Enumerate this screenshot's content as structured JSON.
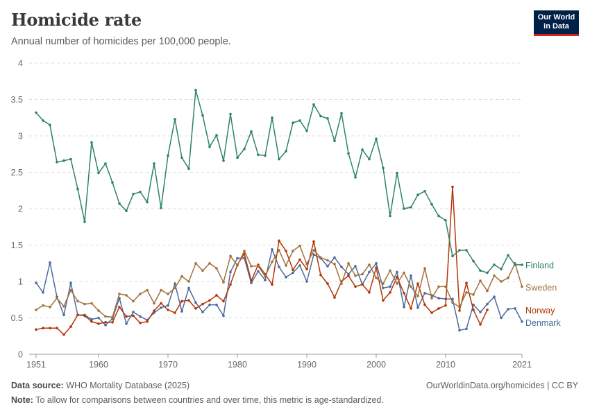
{
  "header": {
    "title": "Homicide rate",
    "subtitle": "Annual number of homicides per 100,000 people."
  },
  "logo": {
    "line1": "Our World",
    "line2": "in Data"
  },
  "footer": {
    "source_label": "Data source:",
    "source_text": "WHO Mortality Database (2025)",
    "url_text": "OurWorldinData.org/homicides | CC BY",
    "note_label": "Note:",
    "note_text": "To allow for comparisons between countries and over time, this metric is age-standardized."
  },
  "chart_data": {
    "type": "line",
    "xlim": [
      1950,
      2021
    ],
    "ylim": [
      0,
      4
    ],
    "x_ticks": [
      1951,
      1960,
      1970,
      1980,
      1990,
      2000,
      2010,
      2021
    ],
    "y_ticks": [
      0,
      0.5,
      1,
      1.5,
      2,
      2.5,
      3,
      3.5,
      4
    ],
    "grid": "horizontal-dashed",
    "legend": "right-end-labels",
    "series": [
      {
        "name": "Finland",
        "color": "#2c8465",
        "x": [
          1951,
          1952,
          1953,
          1954,
          1955,
          1956,
          1957,
          1958,
          1959,
          1960,
          1961,
          1962,
          1963,
          1964,
          1965,
          1966,
          1967,
          1968,
          1969,
          1970,
          1971,
          1972,
          1973,
          1974,
          1975,
          1976,
          1977,
          1978,
          1979,
          1980,
          1981,
          1982,
          1983,
          1984,
          1985,
          1986,
          1987,
          1988,
          1989,
          1990,
          1991,
          1992,
          1993,
          1994,
          1995,
          1996,
          1997,
          1998,
          1999,
          2000,
          2001,
          2002,
          2003,
          2004,
          2005,
          2006,
          2007,
          2008,
          2009,
          2010,
          2011,
          2012,
          2013,
          2014,
          2015,
          2016,
          2017,
          2018,
          2019,
          2020,
          2021
        ],
        "y": [
          3.32,
          3.21,
          3.15,
          2.64,
          2.66,
          2.68,
          2.27,
          1.82,
          2.91,
          2.49,
          2.62,
          2.36,
          2.07,
          1.97,
          2.2,
          2.23,
          2.09,
          2.62,
          2.01,
          2.73,
          3.23,
          2.7,
          2.55,
          3.63,
          3.28,
          2.85,
          3.01,
          2.66,
          3.3,
          2.7,
          2.82,
          3.06,
          2.74,
          2.73,
          3.25,
          2.68,
          2.79,
          3.18,
          3.21,
          3.07,
          3.43,
          3.27,
          3.24,
          2.93,
          3.31,
          2.76,
          2.43,
          2.81,
          2.68,
          2.96,
          2.56,
          1.9,
          2.49,
          2.0,
          2.02,
          2.19,
          2.24,
          2.06,
          1.9,
          1.84,
          1.35,
          1.43,
          1.43,
          1.28,
          1.15,
          1.12,
          1.23,
          1.17,
          1.36,
          1.23,
          1.23
        ]
      },
      {
        "name": "Sweden",
        "color": "#a2713b",
        "x": [
          1951,
          1952,
          1953,
          1954,
          1955,
          1956,
          1957,
          1958,
          1959,
          1960,
          1961,
          1962,
          1963,
          1964,
          1965,
          1966,
          1967,
          1968,
          1969,
          1970,
          1971,
          1972,
          1973,
          1974,
          1975,
          1976,
          1977,
          1978,
          1979,
          1980,
          1981,
          1982,
          1983,
          1984,
          1985,
          1986,
          1987,
          1988,
          1989,
          1990,
          1991,
          1992,
          1993,
          1994,
          1995,
          1996,
          1997,
          1998,
          1999,
          2000,
          2001,
          2002,
          2003,
          2004,
          2005,
          2006,
          2007,
          2008,
          2009,
          2010,
          2011,
          2012,
          2013,
          2014,
          2015,
          2016,
          2017,
          2018,
          2019,
          2020,
          2021
        ],
        "y": [
          0.61,
          0.67,
          0.65,
          0.77,
          0.66,
          0.88,
          0.73,
          0.69,
          0.7,
          0.6,
          0.52,
          0.51,
          0.83,
          0.81,
          0.73,
          0.83,
          0.88,
          0.7,
          0.88,
          0.83,
          0.91,
          1.07,
          1.0,
          1.25,
          1.15,
          1.25,
          1.18,
          0.99,
          1.35,
          1.22,
          1.42,
          1.21,
          1.21,
          1.07,
          1.27,
          1.43,
          1.22,
          1.42,
          1.49,
          1.24,
          1.43,
          1.33,
          1.29,
          1.24,
          0.97,
          1.25,
          1.08,
          1.1,
          1.23,
          1.05,
          0.97,
          1.15,
          0.97,
          1.12,
          0.93,
          0.8,
          1.18,
          0.77,
          0.93,
          0.93,
          0.71,
          0.65,
          0.85,
          0.82,
          1.01,
          0.87,
          1.08,
          1.0,
          1.05,
          1.25,
          0.93
        ]
      },
      {
        "name": "Norway",
        "color": "#b13507",
        "x": [
          1951,
          1952,
          1953,
          1954,
          1955,
          1956,
          1957,
          1958,
          1959,
          1960,
          1961,
          1962,
          1963,
          1964,
          1965,
          1966,
          1967,
          1968,
          1969,
          1970,
          1971,
          1972,
          1973,
          1974,
          1975,
          1976,
          1977,
          1978,
          1979,
          1980,
          1981,
          1982,
          1983,
          1984,
          1985,
          1986,
          1987,
          1988,
          1989,
          1990,
          1991,
          1992,
          1993,
          1994,
          1995,
          1996,
          1997,
          1998,
          1999,
          2000,
          2001,
          2002,
          2003,
          2004,
          2005,
          2006,
          2007,
          2008,
          2009,
          2010,
          2011,
          2012,
          2013,
          2014,
          2015,
          2016
        ],
        "y": [
          0.34,
          0.36,
          0.36,
          0.36,
          0.27,
          0.38,
          0.54,
          0.53,
          0.45,
          0.42,
          0.44,
          0.44,
          0.65,
          0.52,
          0.53,
          0.43,
          0.45,
          0.6,
          0.7,
          0.61,
          0.57,
          0.73,
          0.74,
          0.63,
          0.69,
          0.74,
          0.81,
          0.73,
          0.96,
          1.23,
          1.38,
          1.01,
          1.23,
          1.1,
          0.96,
          1.56,
          1.42,
          1.16,
          1.3,
          1.17,
          1.55,
          1.09,
          0.97,
          0.78,
          1.0,
          1.08,
          0.93,
          0.96,
          0.85,
          1.19,
          0.74,
          0.85,
          1.06,
          0.84,
          0.63,
          0.97,
          0.68,
          0.57,
          0.63,
          0.67,
          2.3,
          0.6,
          0.98,
          0.61,
          0.41,
          0.61
        ]
      },
      {
        "name": "Denmark",
        "color": "#4c6a9c",
        "x": [
          1951,
          1952,
          1953,
          1954,
          1955,
          1956,
          1957,
          1958,
          1959,
          1960,
          1961,
          1962,
          1963,
          1964,
          1965,
          1966,
          1967,
          1968,
          1969,
          1970,
          1971,
          1972,
          1973,
          1974,
          1975,
          1976,
          1977,
          1978,
          1979,
          1980,
          1981,
          1982,
          1983,
          1984,
          1985,
          1986,
          1987,
          1988,
          1989,
          1990,
          1991,
          1992,
          1993,
          1994,
          1995,
          1996,
          1997,
          1998,
          1999,
          2000,
          2001,
          2002,
          2003,
          2004,
          2005,
          2006,
          2007,
          2008,
          2009,
          2010,
          2011,
          2012,
          2013,
          2014,
          2015,
          2016,
          2017,
          2018,
          2019,
          2020,
          2021
        ],
        "y": [
          0.98,
          0.85,
          1.26,
          0.79,
          0.54,
          0.98,
          0.54,
          0.54,
          0.48,
          0.5,
          0.4,
          0.49,
          0.77,
          0.42,
          0.58,
          0.52,
          0.47,
          0.57,
          0.64,
          0.67,
          0.97,
          0.59,
          0.91,
          0.71,
          0.58,
          0.68,
          0.68,
          0.53,
          1.13,
          1.32,
          1.32,
          0.98,
          1.14,
          1.02,
          1.44,
          1.2,
          1.06,
          1.12,
          1.22,
          1.0,
          1.37,
          1.32,
          1.21,
          1.33,
          1.2,
          1.1,
          1.21,
          0.96,
          1.13,
          1.25,
          0.91,
          0.93,
          1.13,
          0.65,
          1.08,
          0.64,
          0.84,
          0.81,
          0.77,
          0.76,
          0.76,
          0.33,
          0.35,
          0.68,
          0.58,
          0.69,
          0.79,
          0.5,
          0.62,
          0.63,
          0.45
        ]
      }
    ]
  }
}
